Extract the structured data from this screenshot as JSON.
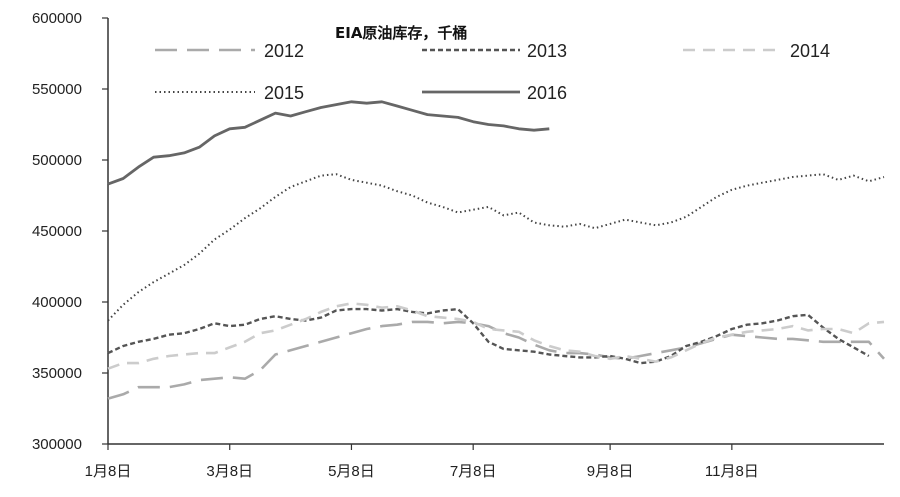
{
  "chart_data": {
    "type": "line",
    "title": "EIA原油库存，千桶",
    "xlabel": "",
    "ylabel": "",
    "ylim": [
      300000,
      600000
    ],
    "yticks": [
      300000,
      350000,
      400000,
      450000,
      500000,
      550000,
      600000
    ],
    "ytick_labels": [
      "300000",
      "350000",
      "400000",
      "450000",
      "500000",
      "550000",
      "600000"
    ],
    "xlim": [
      1,
      52
    ],
    "xticks": [
      {
        "week": 1,
        "label": "1月8日"
      },
      {
        "week": 9,
        "label": "3月8日"
      },
      {
        "week": 17,
        "label": "5月8日"
      },
      {
        "week": 25,
        "label": "7月8日"
      },
      {
        "week": 34,
        "label": "9月8日"
      },
      {
        "week": 42,
        "label": "11月8日"
      }
    ],
    "grid": false,
    "legend_placement": "top",
    "series": [
      {
        "name": "2012",
        "style": "long-dash",
        "color": "#aaaaaa",
        "x": [
          1,
          2,
          3,
          4,
          5,
          6,
          7,
          8,
          9,
          10,
          11,
          12,
          13,
          14,
          15,
          16,
          17,
          18,
          19,
          20,
          21,
          22,
          23,
          24,
          25,
          26,
          27,
          28,
          29,
          30,
          31,
          32,
          33,
          34,
          35,
          36,
          37,
          38,
          39,
          40,
          41,
          42,
          43,
          44,
          45,
          46,
          47,
          48,
          49,
          50,
          51,
          52
        ],
        "values": [
          332000,
          335000,
          340000,
          340000,
          340000,
          342000,
          345000,
          346000,
          347000,
          346000,
          352000,
          363000,
          366000,
          369000,
          372000,
          375000,
          378000,
          381000,
          383000,
          384000,
          386000,
          386000,
          385000,
          386000,
          385000,
          383000,
          378000,
          375000,
          370000,
          366000,
          364000,
          364000,
          363000,
          361000,
          360000,
          362000,
          364000,
          366000,
          368000,
          371000,
          374000,
          377000,
          376000,
          375000,
          374000,
          374000,
          373000,
          372000,
          372000,
          372000,
          372000,
          360000
        ]
      },
      {
        "name": "2013",
        "style": "short-dash",
        "color": "#555555",
        "x": [
          1,
          2,
          3,
          4,
          5,
          6,
          7,
          8,
          9,
          10,
          11,
          12,
          13,
          14,
          15,
          16,
          17,
          18,
          19,
          20,
          21,
          22,
          23,
          24,
          25,
          26,
          27,
          28,
          29,
          30,
          31,
          32,
          33,
          34,
          35,
          36,
          37,
          38,
          39,
          40,
          41,
          42,
          43,
          44,
          45,
          46,
          47,
          48,
          49,
          50,
          51
        ],
        "values": [
          364000,
          369000,
          372000,
          374000,
          377000,
          378000,
          381000,
          385000,
          383000,
          384000,
          388000,
          390000,
          388000,
          387000,
          389000,
          394000,
          395000,
          395000,
          394000,
          395000,
          393000,
          392000,
          394000,
          395000,
          385000,
          372000,
          367000,
          366000,
          365000,
          363000,
          362000,
          361000,
          361000,
          362000,
          360000,
          357000,
          358000,
          362000,
          369000,
          372000,
          376000,
          381000,
          384000,
          385000,
          387000,
          390000,
          391000,
          382000,
          374000,
          368000,
          362000
        ]
      },
      {
        "name": "2014",
        "style": "medium-dash",
        "color": "#cccccc",
        "x": [
          1,
          2,
          3,
          4,
          5,
          6,
          7,
          8,
          9,
          10,
          11,
          12,
          13,
          14,
          15,
          16,
          17,
          18,
          19,
          20,
          21,
          22,
          23,
          24,
          25,
          26,
          27,
          28,
          29,
          30,
          31,
          32,
          33,
          34,
          35,
          36,
          37,
          38,
          39,
          40,
          41,
          42,
          43,
          44,
          45,
          46,
          47,
          48,
          49,
          50,
          51,
          52
        ],
        "values": [
          353000,
          357000,
          357000,
          360000,
          362000,
          363000,
          364000,
          364000,
          368000,
          372000,
          378000,
          380000,
          384000,
          388000,
          393000,
          397000,
          399000,
          398000,
          396000,
          397000,
          394000,
          390000,
          389000,
          388000,
          386000,
          381000,
          380000,
          379000,
          373000,
          369000,
          366000,
          365000,
          362000,
          360000,
          362000,
          360000,
          358000,
          361000,
          366000,
          371000,
          375000,
          377000,
          379000,
          380000,
          381000,
          383000,
          380000,
          381000,
          381000,
          378000,
          385000,
          386000
        ]
      },
      {
        "name": "2015",
        "style": "dotted",
        "color": "#444444",
        "x": [
          1,
          2,
          3,
          4,
          5,
          6,
          7,
          8,
          9,
          10,
          11,
          12,
          13,
          14,
          15,
          16,
          17,
          18,
          19,
          20,
          21,
          22,
          23,
          24,
          25,
          26,
          27,
          28,
          29,
          30,
          31,
          32,
          33,
          34,
          35,
          36,
          37,
          38,
          39,
          40,
          41,
          42,
          43,
          44,
          45,
          46,
          47,
          48,
          49,
          50,
          51,
          52
        ],
        "values": [
          387000,
          398000,
          407000,
          414000,
          420000,
          426000,
          434000,
          444000,
          451000,
          459000,
          466000,
          474000,
          481000,
          485000,
          489000,
          490000,
          486000,
          484000,
          482000,
          478000,
          475000,
          470000,
          467000,
          463000,
          465000,
          467000,
          461000,
          463000,
          456000,
          454000,
          453000,
          455000,
          452000,
          455000,
          458000,
          456000,
          454000,
          456000,
          460000,
          467000,
          474000,
          479000,
          482000,
          484000,
          486000,
          488000,
          489000,
          490000,
          486000,
          489000,
          485000,
          488000
        ]
      },
      {
        "name": "2016",
        "style": "solid",
        "color": "#666666",
        "x": [
          1,
          2,
          3,
          4,
          5,
          6,
          7,
          8,
          9,
          10,
          11,
          12,
          13,
          14,
          15,
          16,
          17,
          18,
          19,
          20,
          21,
          22,
          23,
          24,
          25,
          26,
          27,
          28,
          29,
          30
        ],
        "values": [
          483000,
          487000,
          495000,
          502000,
          503000,
          505000,
          509000,
          517000,
          522000,
          523000,
          528000,
          533000,
          531000,
          534000,
          537000,
          539000,
          541000,
          540000,
          541000,
          538000,
          535000,
          532000,
          531000,
          530000,
          527000,
          525000,
          524000,
          522000,
          521000,
          522000
        ]
      }
    ]
  }
}
